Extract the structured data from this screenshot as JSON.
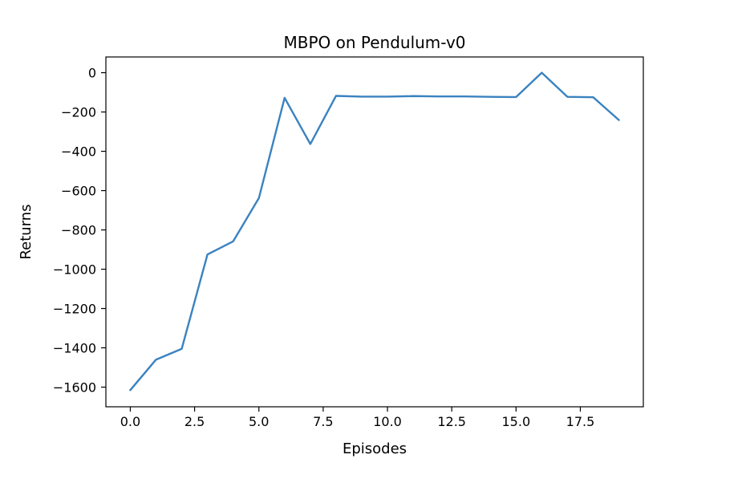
{
  "chart_data": {
    "type": "line",
    "title": "MBPO on Pendulum-v0",
    "xlabel": "Episodes",
    "ylabel": "Returns",
    "xlim": [
      -0.95,
      19.95
    ],
    "ylim": [
      -1700,
      80
    ],
    "grid": false,
    "xticks": [
      0.0,
      2.5,
      5.0,
      7.5,
      10.0,
      12.5,
      15.0,
      17.5
    ],
    "xtick_labels": [
      "0.0",
      "2.5",
      "5.0",
      "7.5",
      "10.0",
      "12.5",
      "15.0",
      "17.5"
    ],
    "yticks": [
      0,
      -200,
      -400,
      -600,
      -800,
      -1000,
      -1200,
      -1400,
      -1600
    ],
    "ytick_labels": [
      "0",
      "−200",
      "−400",
      "−600",
      "−800",
      "−1000",
      "−1200",
      "−1400",
      "−1600"
    ],
    "series": [
      {
        "color": "#3a82c0",
        "x": [
          0,
          1,
          2,
          3,
          4,
          5,
          6,
          7,
          8,
          9,
          10,
          11,
          12,
          13,
          14,
          15,
          16,
          17,
          18,
          19
        ],
        "y": [
          -1615,
          -1460,
          -1405,
          -925,
          -858,
          -638,
          -128,
          -363,
          -118,
          -122,
          -122,
          -119,
          -121,
          -121,
          -123,
          -124,
          0,
          -123,
          -125,
          -241
        ]
      }
    ]
  }
}
